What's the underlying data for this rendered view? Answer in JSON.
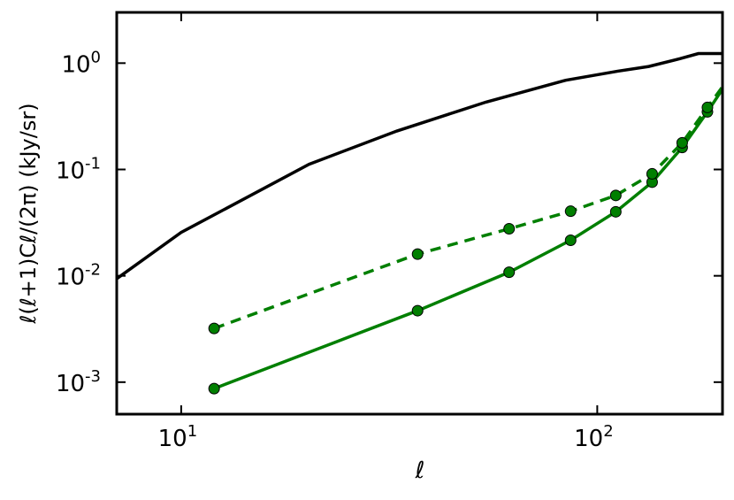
{
  "chart_data": {
    "type": "line",
    "x_label": "ℓ",
    "y_label": "ℓ(ℓ+1)Cℓ/(2π) (kJy/sr)",
    "xlog": true,
    "ylog": true,
    "xlim": [
      7,
      200
    ],
    "ylim": [
      0.0005,
      3
    ],
    "xticks": [
      {
        "value": 10,
        "label": "10",
        "exponent": "1"
      },
      {
        "value": 100,
        "label": "10",
        "exponent": "2"
      }
    ],
    "yticks": [
      {
        "value": 0.001,
        "label": "10",
        "exponent": "-3"
      },
      {
        "value": 0.01,
        "label": "10",
        "exponent": "-2"
      },
      {
        "value": 0.1,
        "label": "10",
        "exponent": "-1"
      },
      {
        "value": 1,
        "label": "10",
        "exponent": "0"
      }
    ],
    "series": [
      {
        "color": "#000000",
        "dashed": false,
        "markers": false,
        "x": [
          7,
          10,
          20.3,
          33,
          54,
          84,
          112,
          133,
          158,
          175,
          200
        ],
        "values": [
          0.0094,
          0.0256,
          0.112,
          0.23,
          0.43,
          0.69,
          0.84,
          0.93,
          1.1,
          1.23,
          1.23
        ]
      },
      {
        "color": "#007f00",
        "dashed": false,
        "markers": true,
        "x": [
          12,
          37,
          61.4,
          86.3,
          110.8,
          135.5,
          160,
          184,
          200
        ],
        "values": [
          0.00087,
          0.0047,
          0.0108,
          0.0216,
          0.04,
          0.076,
          0.161,
          0.348,
          0.57
        ],
        "marker_count": 8
      },
      {
        "color": "#007f00",
        "dashed": true,
        "markers": true,
        "x": [
          12,
          37,
          61.4,
          86.3,
          110.8,
          135.5,
          160,
          184,
          200
        ],
        "values": [
          0.0032,
          0.016,
          0.0277,
          0.0405,
          0.057,
          0.091,
          0.178,
          0.383,
          0.6
        ],
        "marker_count": 8
      }
    ]
  }
}
